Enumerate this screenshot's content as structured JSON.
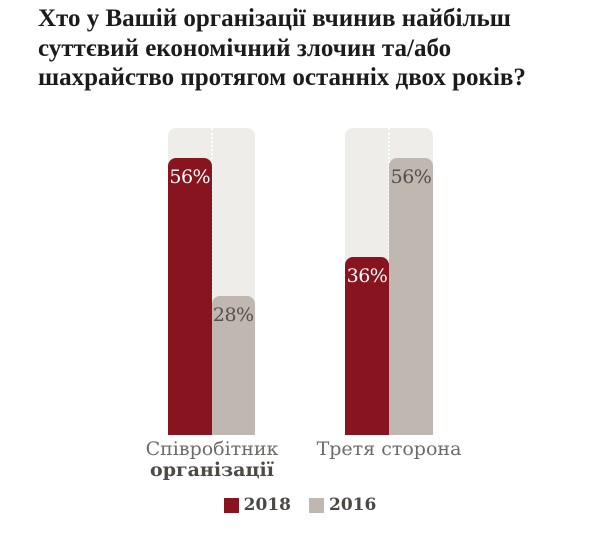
{
  "title": "Хто у Вашій організації вчинив найбільш суттєвий економічний злочин та/або шахрайство протягом останніх двох років?",
  "chart_data": {
    "type": "bar",
    "categories": [
      "Співробітник організації",
      "Третя сторона"
    ],
    "category_lines": [
      [
        "Співробітник",
        "організації"
      ],
      [
        "Третя сторона",
        ""
      ]
    ],
    "series": [
      {
        "name": "2018",
        "values": [
          56,
          36
        ],
        "color": "#87141f",
        "label_color": "#ffffff"
      },
      {
        "name": "2016",
        "values": [
          28,
          56
        ],
        "color": "#c0b7b0",
        "label_color": "#55504b"
      }
    ],
    "value_suffix": "%",
    "ylim": [
      0,
      62
    ],
    "grid": false,
    "legend_position": "bottom-center",
    "track_color": "#efedea",
    "background": "#ffffff",
    "title_color": "#1b1b1b"
  }
}
